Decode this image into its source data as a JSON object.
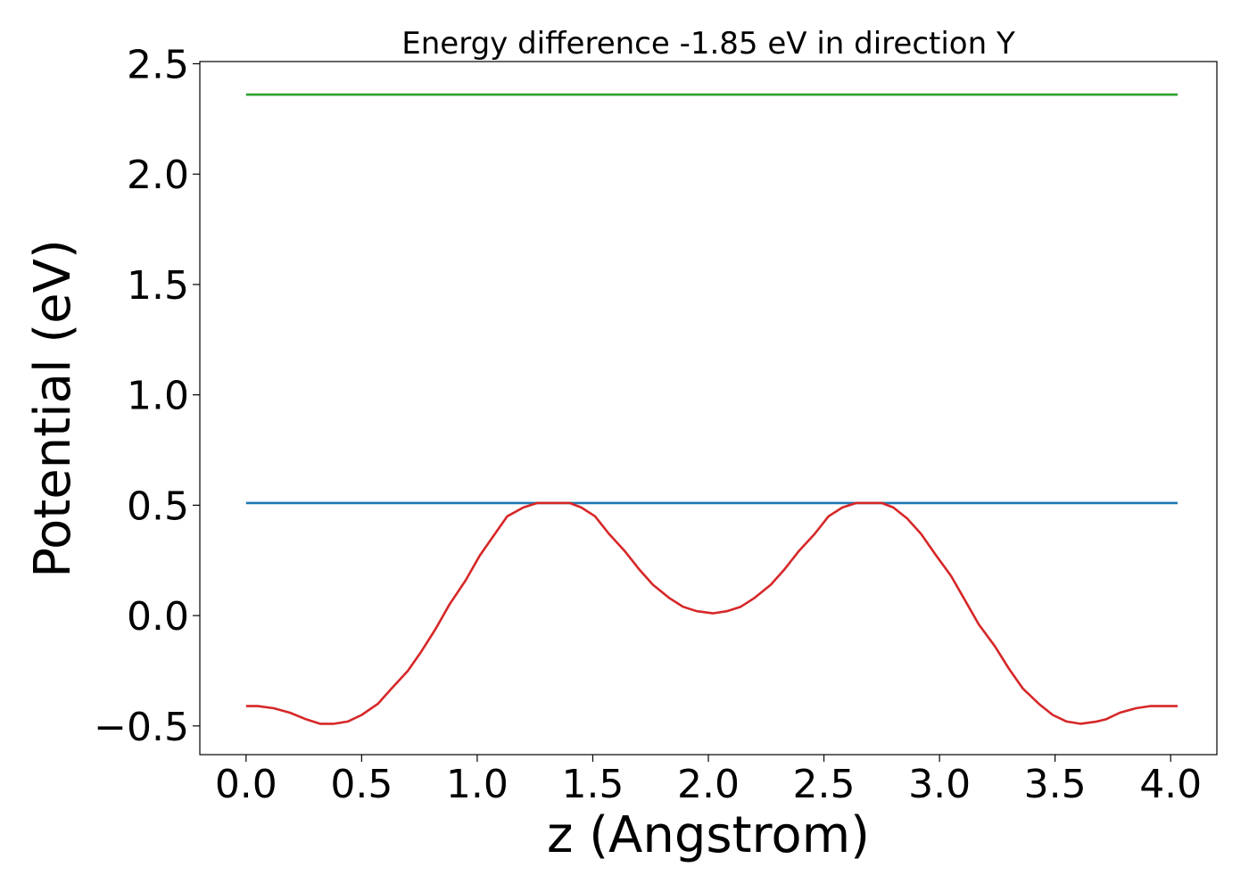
{
  "chart_data": {
    "type": "line",
    "title": "Energy difference -1.85 eV in direction Y",
    "xlabel": "z (Angstrom)",
    "ylabel": "Potential (eV)",
    "xlim": [
      -0.2,
      4.2
    ],
    "ylim": [
      -0.63,
      2.51
    ],
    "xticks": [
      {
        "value": 0.0,
        "label": "0.0"
      },
      {
        "value": 0.5,
        "label": "0.5"
      },
      {
        "value": 1.0,
        "label": "1.0"
      },
      {
        "value": 1.5,
        "label": "1.5"
      },
      {
        "value": 2.0,
        "label": "2.0"
      },
      {
        "value": 2.5,
        "label": "2.5"
      },
      {
        "value": 3.0,
        "label": "3.0"
      },
      {
        "value": 3.5,
        "label": "3.5"
      },
      {
        "value": 4.0,
        "label": "4.0"
      }
    ],
    "yticks": [
      {
        "value": -0.5,
        "label": "−0.5"
      },
      {
        "value": 0.0,
        "label": "0.0"
      },
      {
        "value": 0.5,
        "label": "0.5"
      },
      {
        "value": 1.0,
        "label": "1.0"
      },
      {
        "value": 1.5,
        "label": "1.5"
      },
      {
        "value": 2.0,
        "label": "2.0"
      },
      {
        "value": 2.5,
        "label": "2.5"
      }
    ],
    "grid": false,
    "legend": "none",
    "series": [
      {
        "color": "#2ca02c",
        "x": [
          0.0,
          4.03
        ],
        "y": [
          2.36,
          2.36
        ]
      },
      {
        "color": "#1f77b4",
        "x": [
          0.0,
          4.03
        ],
        "y": [
          0.51,
          0.51
        ]
      },
      {
        "color": "#d62728",
        "x": [
          0.0,
          0.05,
          0.12,
          0.19,
          0.26,
          0.32,
          0.38,
          0.44,
          0.5,
          0.57,
          0.63,
          0.7,
          0.76,
          0.82,
          0.88,
          0.95,
          1.01,
          1.07,
          1.13,
          1.2,
          1.26,
          1.32,
          1.36,
          1.4,
          1.45,
          1.51,
          1.57,
          1.64,
          1.7,
          1.76,
          1.83,
          1.89,
          1.95,
          2.02,
          2.08,
          2.14,
          2.2,
          2.27,
          2.33,
          2.39,
          2.46,
          2.52,
          2.58,
          2.64,
          2.71,
          2.75,
          2.8,
          2.86,
          2.92,
          2.98,
          3.05,
          3.11,
          3.17,
          3.24,
          3.3,
          3.36,
          3.43,
          3.49,
          3.55,
          3.61,
          3.68,
          3.72,
          3.78,
          3.85,
          3.91,
          3.97,
          4.03
        ],
        "y": [
          -0.41,
          -0.41,
          -0.42,
          -0.44,
          -0.47,
          -0.49,
          -0.49,
          -0.48,
          -0.45,
          -0.4,
          -0.33,
          -0.25,
          -0.16,
          -0.06,
          0.05,
          0.16,
          0.27,
          0.36,
          0.45,
          0.49,
          0.51,
          0.51,
          0.51,
          0.51,
          0.49,
          0.45,
          0.37,
          0.29,
          0.21,
          0.14,
          0.08,
          0.04,
          0.02,
          0.01,
          0.02,
          0.04,
          0.08,
          0.14,
          0.21,
          0.29,
          0.37,
          0.45,
          0.49,
          0.51,
          0.51,
          0.51,
          0.49,
          0.44,
          0.37,
          0.28,
          0.18,
          0.07,
          -0.04,
          -0.14,
          -0.24,
          -0.33,
          -0.4,
          -0.45,
          -0.48,
          -0.49,
          -0.48,
          -0.47,
          -0.44,
          -0.42,
          -0.41,
          -0.41,
          -0.41
        ]
      }
    ]
  }
}
